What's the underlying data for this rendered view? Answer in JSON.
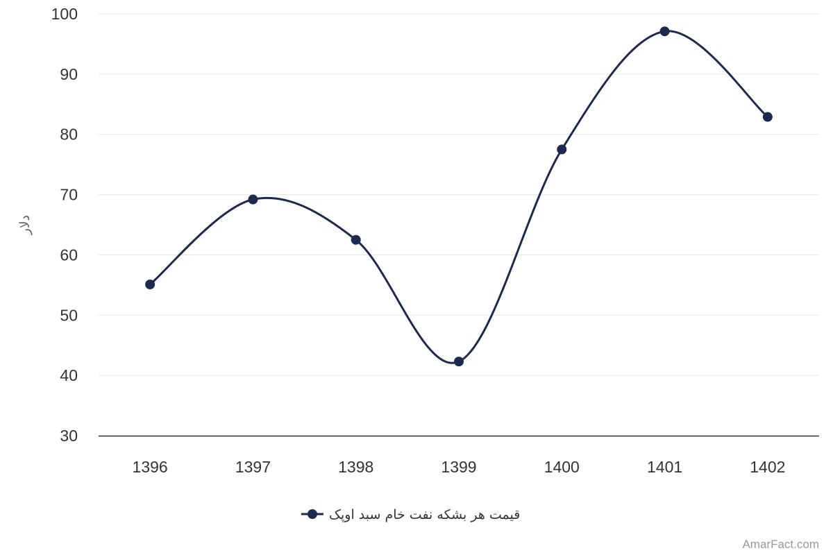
{
  "chart_data": {
    "type": "line",
    "x": [
      "1396",
      "1397",
      "1398",
      "1399",
      "1400",
      "1401",
      "1402"
    ],
    "series": [
      {
        "name": "قیمت هر بشکه نفت خام سبد اوپک",
        "values": [
          55.1,
          69.2,
          62.5,
          42.3,
          77.5,
          97.1,
          82.9
        ],
        "color": "#1c2a4f"
      }
    ],
    "ylabel": "دلار",
    "ylim": [
      30,
      100
    ],
    "yticks": [
      30,
      40,
      50,
      60,
      70,
      80,
      90,
      100
    ],
    "grid": true,
    "smooth": true,
    "legend_position": "bottom-center"
  },
  "credit": "AmarFact.com",
  "colors": {
    "grid": "#e6e6e6",
    "axis": "#333333",
    "series": "#1c2a4f"
  }
}
